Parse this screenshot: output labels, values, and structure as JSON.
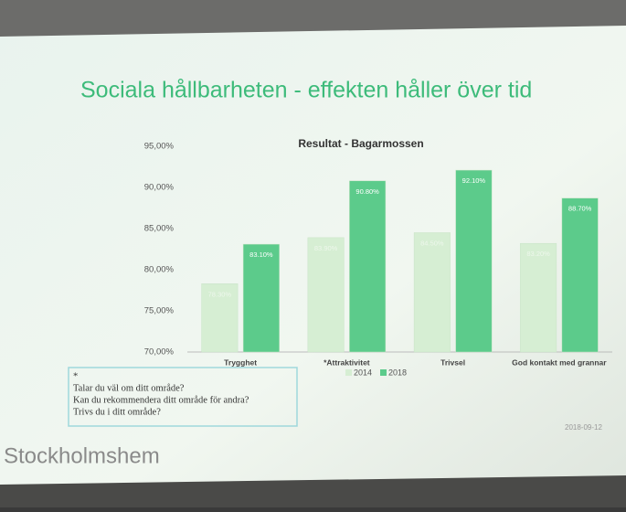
{
  "chart_data": {
    "type": "bar",
    "heading": "Sociala hållbarheten - effekten håller över tid",
    "title": "Resultat - Bagarmossen",
    "categories": [
      "Trygghet",
      "*Attraktivitet",
      "Trivsel",
      "God kontakt med grannar"
    ],
    "series": [
      {
        "name": "2014",
        "color": "#d6eed3",
        "values": [
          78.3,
          83.9,
          84.5,
          83.2
        ],
        "value_labels": [
          "78.30%",
          "83.90%",
          "84.50%",
          "83.20%"
        ]
      },
      {
        "name": "2018",
        "color": "#5ccb8b",
        "values": [
          83.1,
          90.8,
          92.1,
          88.7
        ],
        "value_labels": [
          "83.10%",
          "90.80%",
          "92.10%",
          "88.70%"
        ]
      }
    ],
    "ylim": [
      70,
      95
    ],
    "yticks": [
      {
        "value": 70,
        "label": "70,00%"
      },
      {
        "value": 75,
        "label": "75,00%"
      },
      {
        "value": 80,
        "label": "80,00%"
      },
      {
        "value": 85,
        "label": "85,00%"
      },
      {
        "value": 90,
        "label": "90,00%"
      },
      {
        "value": 95,
        "label": "95,00%"
      }
    ],
    "grid": false,
    "footnote": [
      "*",
      "Talar du väl om ditt område?",
      "Kan du rekommendera ditt område för andra?",
      "Trivs du i ditt område?"
    ],
    "date": "2018-09-12",
    "logo": "Stockholmshem"
  }
}
